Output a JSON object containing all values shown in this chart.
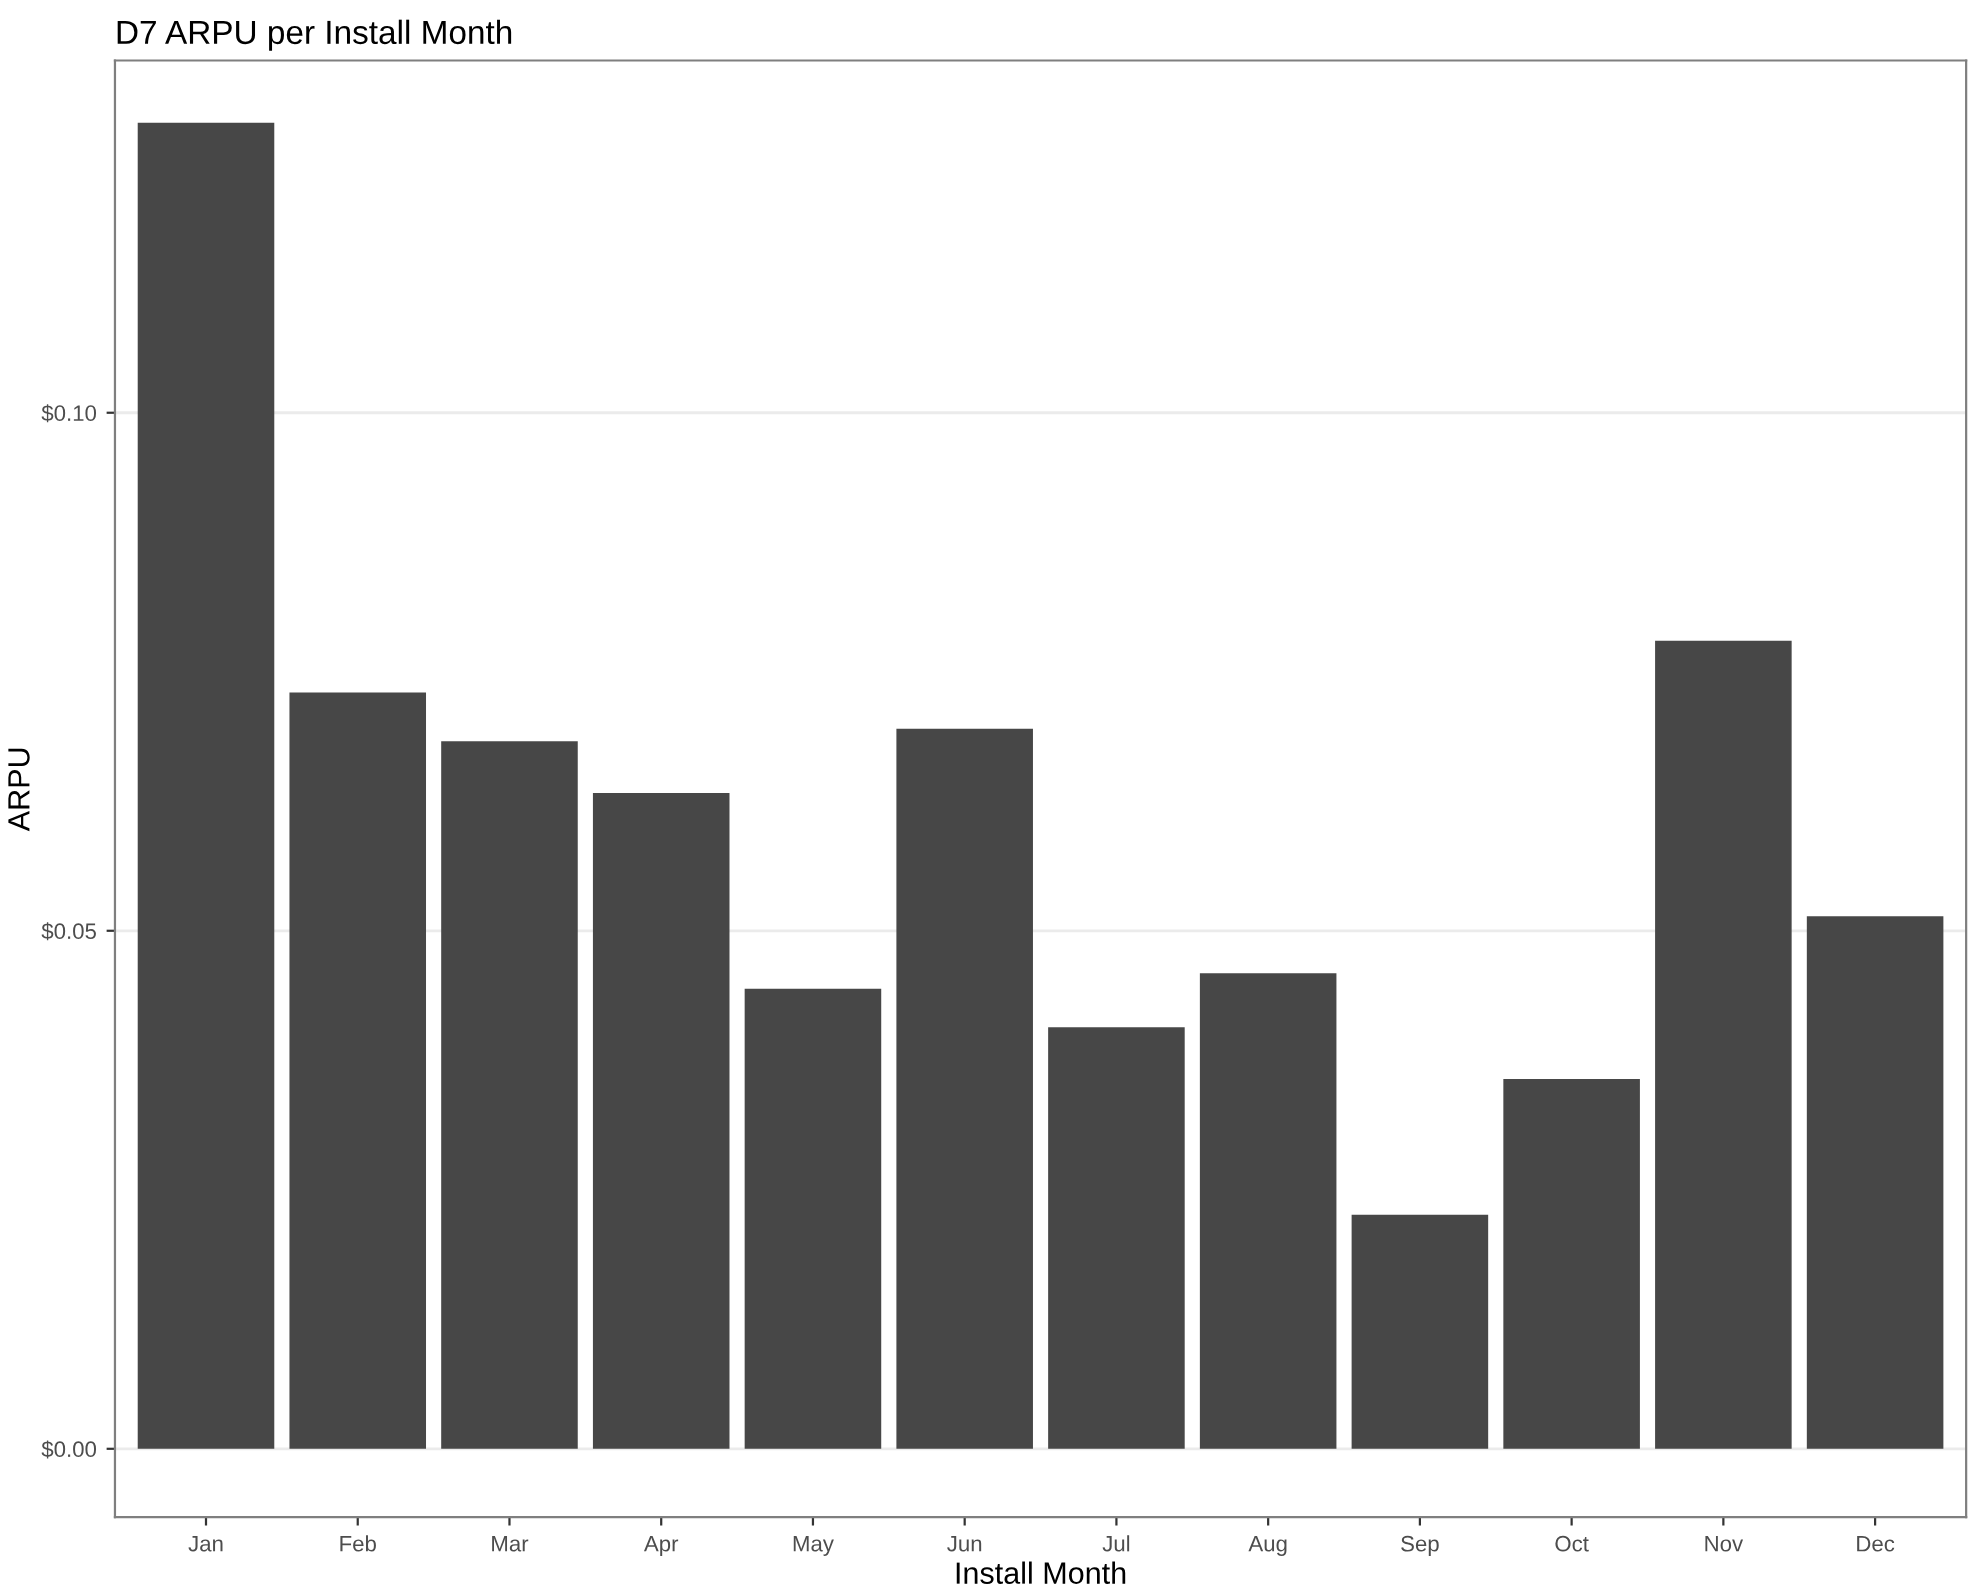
{
  "chart_data": {
    "type": "bar",
    "title": "D7 ARPU per Install Month",
    "xlabel": "Install Month",
    "ylabel": "ARPU",
    "categories": [
      "Jan",
      "Feb",
      "Mar",
      "Apr",
      "May",
      "Jun",
      "Jul",
      "Aug",
      "Sep",
      "Oct",
      "Nov",
      "Dec"
    ],
    "values": [
      0.128,
      0.073,
      0.0683,
      0.0633,
      0.0444,
      0.0695,
      0.0407,
      0.0459,
      0.0226,
      0.0357,
      0.078,
      0.0514
    ],
    "color": "#474747",
    "ylim": [
      -0.0066,
      0.134
    ],
    "yticks": [
      {
        "value": 0,
        "label": "$0.00"
      },
      {
        "value": 0.05,
        "label": "$0.05"
      },
      {
        "value": 0.1,
        "label": "$0.10"
      }
    ],
    "grid": "y"
  }
}
